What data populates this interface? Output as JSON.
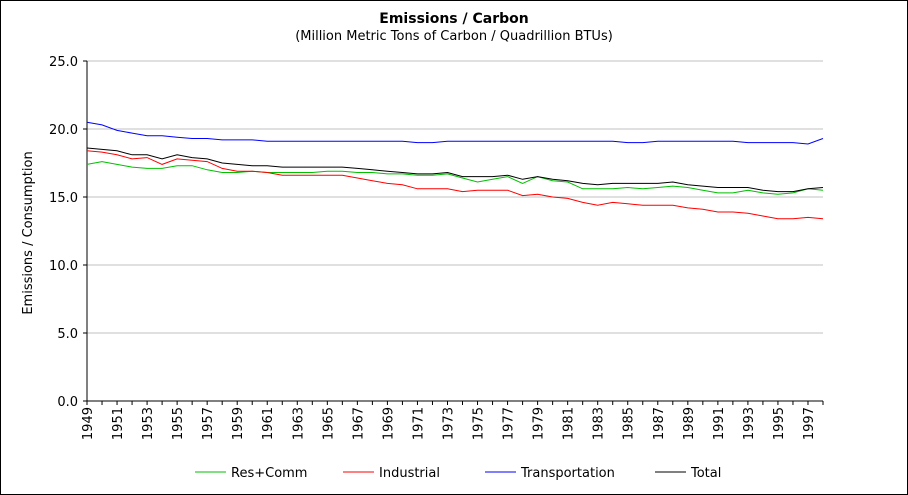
{
  "chart_data": {
    "type": "line",
    "title": "Emissions / Carbon",
    "subtitle": "(Million Metric Tons of Carbon / Quadrillion BTUs)",
    "ylabel": "Emissions / Consumption",
    "xlabel": "",
    "ylim": [
      0,
      25
    ],
    "yticks": [
      "0.0",
      "5.0",
      "10.0",
      "15.0",
      "20.0",
      "25.0"
    ],
    "x": [
      1949,
      1950,
      1951,
      1952,
      1953,
      1954,
      1955,
      1956,
      1957,
      1958,
      1959,
      1960,
      1961,
      1962,
      1963,
      1964,
      1965,
      1966,
      1967,
      1968,
      1969,
      1970,
      1971,
      1972,
      1973,
      1974,
      1975,
      1976,
      1977,
      1978,
      1979,
      1980,
      1981,
      1982,
      1983,
      1984,
      1985,
      1986,
      1987,
      1988,
      1989,
      1990,
      1991,
      1992,
      1993,
      1994,
      1995,
      1996,
      1997,
      1998
    ],
    "xtick_labels": [
      "1949",
      "1951",
      "1953",
      "1955",
      "1957",
      "1959",
      "1961",
      "1963",
      "1965",
      "1967",
      "1969",
      "1971",
      "1973",
      "1975",
      "1977",
      "1979",
      "1981",
      "1983",
      "1985",
      "1987",
      "1989",
      "1991",
      "1993",
      "1995",
      "1997"
    ],
    "legend_position": "bottom",
    "grid": "horizontal",
    "series": [
      {
        "name": "Res+Comm",
        "color": "#00c000",
        "values": [
          17.4,
          17.6,
          17.4,
          17.2,
          17.1,
          17.1,
          17.3,
          17.3,
          17.0,
          16.8,
          16.8,
          16.9,
          16.8,
          16.8,
          16.8,
          16.8,
          16.9,
          16.9,
          16.8,
          16.8,
          16.7,
          16.7,
          16.6,
          16.6,
          16.7,
          16.4,
          16.1,
          16.3,
          16.5,
          16.0,
          16.5,
          16.2,
          16.1,
          15.6,
          15.6,
          15.6,
          15.7,
          15.6,
          15.7,
          15.8,
          15.7,
          15.5,
          15.3,
          15.3,
          15.5,
          15.3,
          15.2,
          15.3,
          15.6,
          15.5
        ]
      },
      {
        "name": "Industrial",
        "color": "#ff0000",
        "values": [
          18.4,
          18.3,
          18.1,
          17.8,
          17.9,
          17.4,
          17.8,
          17.7,
          17.6,
          17.1,
          16.9,
          16.9,
          16.8,
          16.6,
          16.6,
          16.6,
          16.6,
          16.6,
          16.4,
          16.2,
          16.0,
          15.9,
          15.6,
          15.6,
          15.6,
          15.4,
          15.5,
          15.5,
          15.5,
          15.1,
          15.2,
          15.0,
          14.9,
          14.6,
          14.4,
          14.6,
          14.5,
          14.4,
          14.4,
          14.4,
          14.2,
          14.1,
          13.9,
          13.9,
          13.8,
          13.6,
          13.4,
          13.4,
          13.5,
          13.4
        ]
      },
      {
        "name": "Transportation",
        "color": "#0000ff",
        "values": [
          20.5,
          20.3,
          19.9,
          19.7,
          19.5,
          19.5,
          19.4,
          19.3,
          19.3,
          19.2,
          19.2,
          19.2,
          19.1,
          19.1,
          19.1,
          19.1,
          19.1,
          19.1,
          19.1,
          19.1,
          19.1,
          19.1,
          19.0,
          19.0,
          19.1,
          19.1,
          19.1,
          19.1,
          19.1,
          19.1,
          19.1,
          19.1,
          19.1,
          19.1,
          19.1,
          19.1,
          19.0,
          19.0,
          19.1,
          19.1,
          19.1,
          19.1,
          19.1,
          19.1,
          19.0,
          19.0,
          19.0,
          19.0,
          18.9,
          19.3
        ]
      },
      {
        "name": "Total",
        "color": "#000000",
        "values": [
          18.6,
          18.5,
          18.4,
          18.1,
          18.1,
          17.8,
          18.1,
          17.9,
          17.8,
          17.5,
          17.4,
          17.3,
          17.3,
          17.2,
          17.2,
          17.2,
          17.2,
          17.2,
          17.1,
          17.0,
          16.9,
          16.8,
          16.7,
          16.7,
          16.8,
          16.5,
          16.5,
          16.5,
          16.6,
          16.3,
          16.5,
          16.3,
          16.2,
          16.0,
          15.9,
          16.0,
          16.0,
          16.0,
          16.0,
          16.1,
          15.9,
          15.8,
          15.7,
          15.7,
          15.7,
          15.5,
          15.4,
          15.4,
          15.6,
          15.7
        ]
      }
    ]
  }
}
